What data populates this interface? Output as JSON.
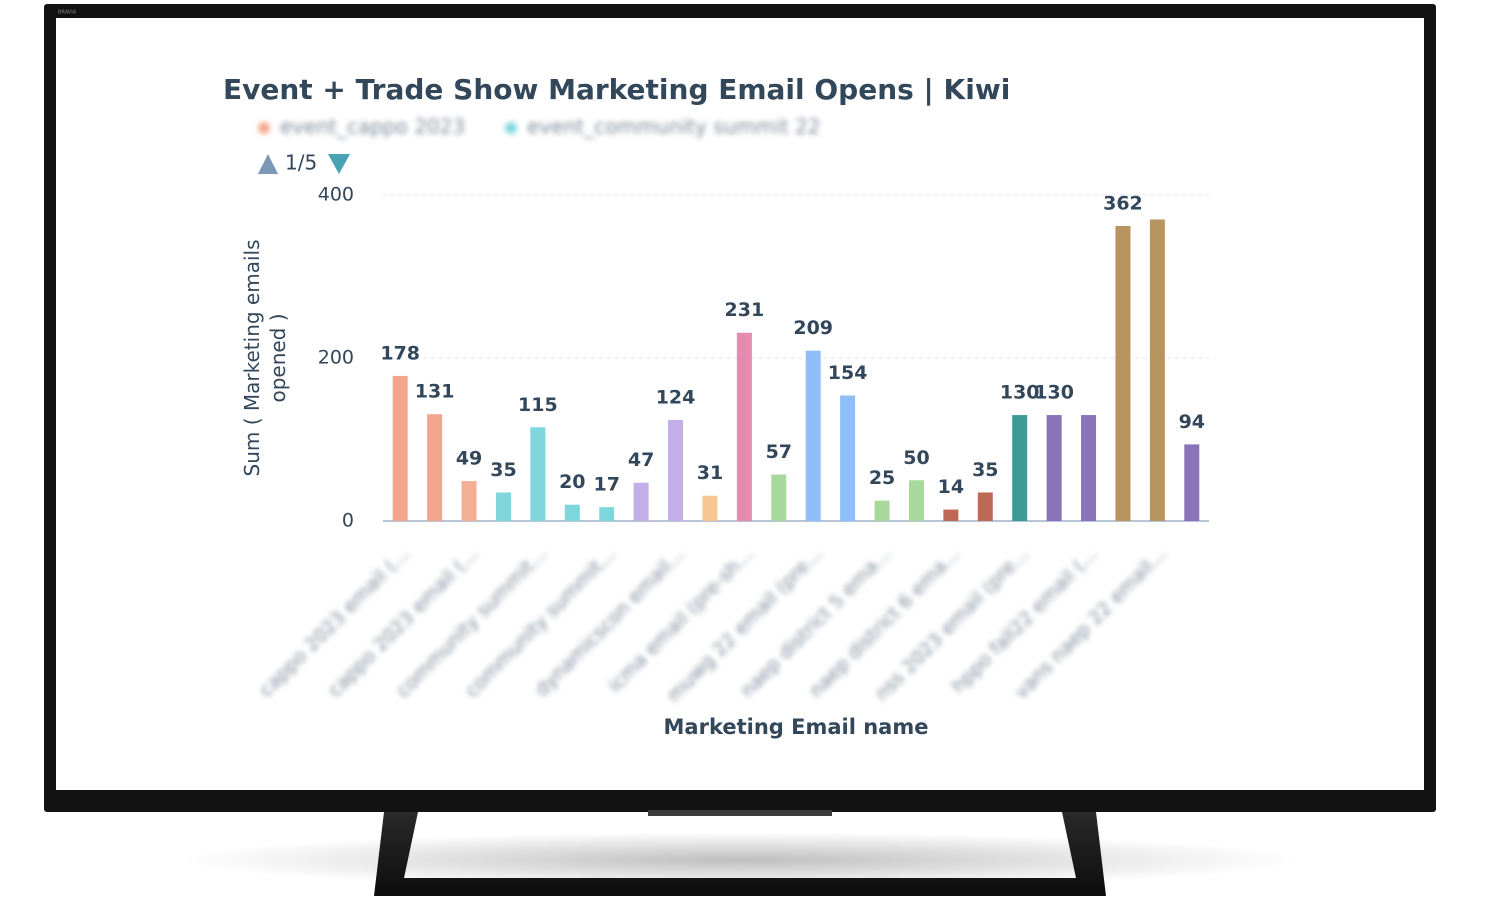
{
  "device_label": "BRAVIA",
  "chart_data": {
    "type": "bar",
    "title": "Event + Trade Show Marketing Email Opens | Kiwi",
    "legend": [
      {
        "name": "event_cappo 2023",
        "color": "#f4a58e"
      },
      {
        "name": "event_community summit 22",
        "color": "#7fd6dc"
      }
    ],
    "pager": "1/5",
    "ylabel": [
      "Sum ( Marketing emails",
      "opened )"
    ],
    "xlabel": "Marketing Email name",
    "categories": [
      "cappo 2023 email (...",
      null,
      "cappo 2023 email (...",
      null,
      "community summit...",
      null,
      "community summit...",
      null,
      "dynamicscon email...",
      null,
      "icma email (pre-sh...",
      null,
      "muwg 22 email (pre...",
      null,
      "naep district 5 ema...",
      null,
      "naep district 6 ema...",
      null,
      "nss 2023 email (pre...",
      null,
      "hppo fall22 email (...",
      null,
      "vans naep 22 email...",
      null
    ],
    "values": [
      178,
      131,
      49,
      35,
      115,
      20,
      17,
      47,
      124,
      31,
      231,
      57,
      209,
      154,
      25,
      50,
      14,
      35,
      130,
      130,
      130,
      362,
      370,
      94
    ],
    "value_labels": [
      "178",
      "131",
      "49",
      "35",
      "115",
      "20",
      "17",
      "47",
      "124",
      "31",
      "231",
      "57",
      "209",
      "154",
      "25",
      "50",
      "14",
      "35",
      "130",
      "130",
      null,
      "362",
      null,
      "94"
    ],
    "colors": [
      "#f4a58e",
      "#f4a58e",
      "#f4ae94",
      "#7fd6dc",
      "#7fd6dc",
      "#7fd6dc",
      "#7fd6dc",
      "#c3aee8",
      "#c3aee8",
      "#f7c58f",
      "#e38cb0",
      "#a8d89b",
      "#8fbff8",
      "#8fbff8",
      "#a8d89b",
      "#a8d89b",
      "#c06856",
      "#c06856",
      "#3d9b97",
      "#8a73b8",
      "#8a73b8",
      "#b8955f",
      "#b8955f",
      "#8a73b8"
    ],
    "ylim": [
      0,
      400
    ],
    "yticks": [
      0,
      200,
      400
    ],
    "grid": true
  }
}
